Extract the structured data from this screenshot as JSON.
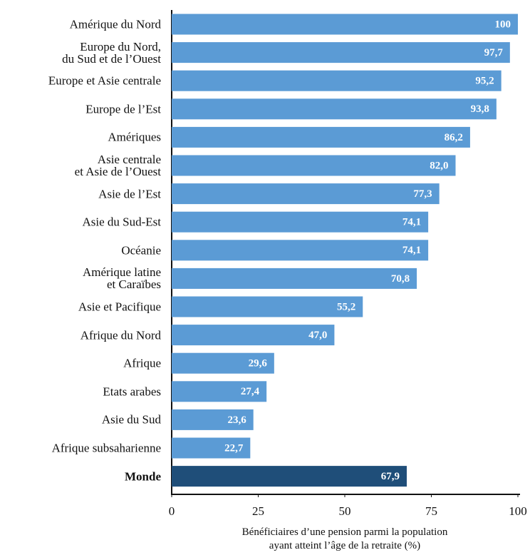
{
  "chart_data": {
    "type": "barh",
    "categories": [
      "Amérique du Nord",
      "Europe du Nord,\ndu Sud et de l’Ouest",
      "Europe et Asie centrale",
      "Europe de l’Est",
      "Amériques",
      "Asie centrale\net Asie de l’Ouest",
      "Asie de l’Est",
      "Asie du Sud-Est",
      "Océanie",
      "Amérique latine\net Caraïbes",
      "Asie et Pacifique",
      "Afrique du Nord",
      "Afrique",
      "Etats arabes",
      "Asie du Sud",
      "Afrique subsaharienne",
      "Monde"
    ],
    "values": [
      100,
      97.7,
      95.2,
      93.8,
      86.2,
      82.0,
      77.3,
      74.1,
      74.1,
      70.8,
      55.2,
      47.0,
      29.6,
      27.4,
      23.6,
      22.7,
      67.9
    ],
    "value_labels": [
      "100",
      "97,7",
      "95,2",
      "93,8",
      "86,2",
      "82,0",
      "77,3",
      "74,1",
      "74,1",
      "70,8",
      "55,2",
      "47,0",
      "29,6",
      "27,4",
      "23,6",
      "22,7",
      "67,9"
    ],
    "colors": [
      "#5b9bd5",
      "#5b9bd5",
      "#5b9bd5",
      "#5b9bd5",
      "#5b9bd5",
      "#5b9bd5",
      "#5b9bd5",
      "#5b9bd5",
      "#5b9bd5",
      "#5b9bd5",
      "#5b9bd5",
      "#5b9bd5",
      "#5b9bd5",
      "#5b9bd5",
      "#5b9bd5",
      "#5b9bd5",
      "#1f4e79"
    ],
    "xlim": [
      0,
      100
    ],
    "xticks": [
      0,
      25,
      50,
      75,
      100
    ],
    "xlabel": "Bénéficiaires d’une pension parmi la population\nayant atteint l’âge de la retraite (%)"
  }
}
